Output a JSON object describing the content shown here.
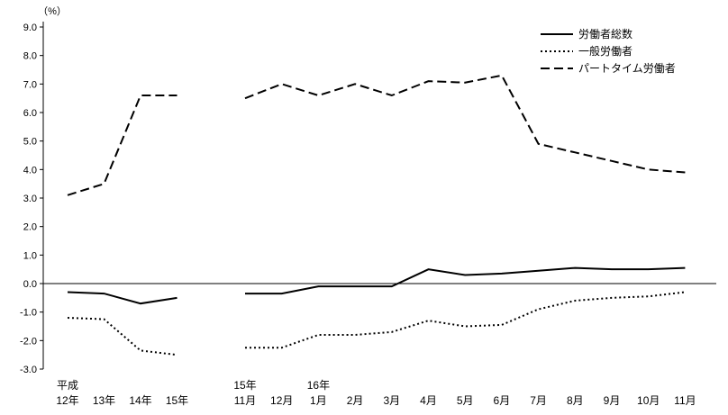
{
  "chart_data": {
    "type": "line",
    "title": "",
    "unit_label": "（%）",
    "ylim": [
      -3.0,
      9.0
    ],
    "ytick_step": 1.0,
    "ytick_labels": [
      "9.0",
      "8.0",
      "7.0",
      "6.0",
      "5.0",
      "4.0",
      "3.0",
      "2.0",
      "1.0",
      "0.0",
      "-1.0",
      "-2.0",
      "-3.0"
    ],
    "grid": false,
    "legend_position": "top-right",
    "line_color": "#000000",
    "background": "#ffffff",
    "x_annual": {
      "labels": [
        "12年",
        "13年",
        "14年",
        "15年"
      ],
      "top_labels": [
        "平成",
        "",
        "",
        ""
      ]
    },
    "x_monthly": {
      "labels": [
        "11月",
        "12月",
        "1月",
        "2月",
        "3月",
        "4月",
        "5月",
        "6月",
        "7月",
        "8月",
        "9月",
        "10月",
        "11月"
      ],
      "top_labels": [
        "15年",
        "",
        "16年",
        "",
        "",
        "",
        "",
        "",
        "",
        "",
        "",
        "",
        ""
      ]
    },
    "series": [
      {
        "name": "労働者総数",
        "line_style": "solid",
        "annual": [
          -0.3,
          -0.35,
          -0.7,
          -0.5
        ],
        "monthly": [
          -0.35,
          -0.35,
          -0.1,
          -0.1,
          -0.1,
          0.5,
          0.3,
          0.35,
          0.45,
          0.55,
          0.5,
          0.5,
          0.55
        ]
      },
      {
        "name": "一般労働者",
        "line_style": "dotted",
        "annual": [
          -1.2,
          -1.25,
          -2.35,
          -2.5
        ],
        "monthly": [
          -2.25,
          -2.25,
          -1.8,
          -1.8,
          -1.7,
          -1.3,
          -1.5,
          -1.45,
          -0.9,
          -0.6,
          -0.5,
          -0.45,
          -0.3
        ]
      },
      {
        "name": "パートタイム労働者",
        "line_style": "dashed",
        "annual": [
          3.1,
          3.5,
          6.6,
          6.6
        ],
        "monthly": [
          6.5,
          7.0,
          6.6,
          7.0,
          6.6,
          7.1,
          7.05,
          7.3,
          4.9,
          4.6,
          4.3,
          4.0,
          3.9
        ]
      }
    ]
  }
}
